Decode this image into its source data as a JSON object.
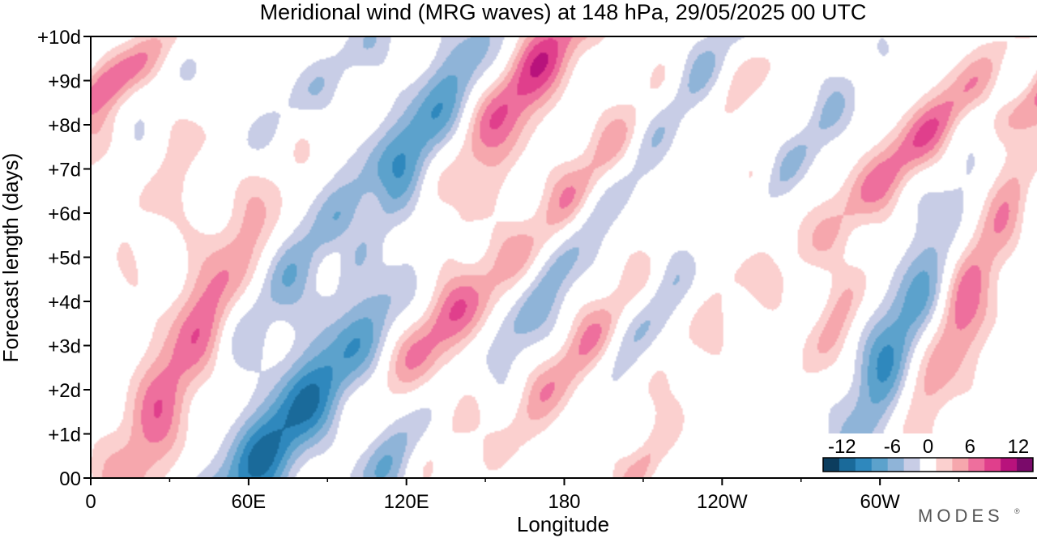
{
  "chart_data": {
    "type": "heatmap",
    "title": "Meridional wind (MRG waves) at  148 hPa,  29/05/2025  00 UTC",
    "xlabel": "Longitude",
    "ylabel": "Forecast length (days)",
    "x_ticks": [
      "0",
      "60E",
      "120E",
      "180",
      "120W",
      "60W"
    ],
    "x_tick_values": [
      0,
      60,
      120,
      180,
      240,
      300
    ],
    "xlim": [
      0,
      360
    ],
    "y_ticks": [
      "00",
      "+1d",
      "+2d",
      "+3d",
      "+4d",
      "+5d",
      "+6d",
      "+7d",
      "+8d",
      "+9d",
      "+10d"
    ],
    "y_tick_values": [
      0,
      1,
      2,
      3,
      4,
      5,
      6,
      7,
      8,
      9,
      10
    ],
    "ylim": [
      0,
      10
    ],
    "colorbar": {
      "tick_labels": [
        "-12",
        "-6",
        "0",
        "6",
        "12"
      ],
      "levels": [
        -14,
        -12,
        -10,
        -8,
        -6,
        -4,
        -2,
        2,
        4,
        6,
        8,
        10,
        12,
        14
      ],
      "colors": [
        "#0c3d5e",
        "#1a6a9a",
        "#2f88bd",
        "#5ca2cc",
        "#8fb4d8",
        "#c8cde6",
        "#ffffff",
        "#fbd0cf",
        "#f6a7ad",
        "#ee6f9d",
        "#e03f8c",
        "#b8127c",
        "#7a0a6a"
      ]
    },
    "features": [
      {
        "sign": 1,
        "lon": 8,
        "day": 9.0,
        "amp": 7.5,
        "slope": 20,
        "sx": 10,
        "sy": 1.0
      },
      {
        "sign": 1,
        "lon": 35,
        "day": 2.5,
        "amp": 8.5,
        "slope": 8,
        "sx": 10,
        "sy": 2.8
      },
      {
        "sign": 1,
        "lon": 30,
        "day": 6.8,
        "amp": 3.0,
        "slope": 8,
        "sx": 12,
        "sy": 1.6
      },
      {
        "sign": -1,
        "lon": 35,
        "day": 9.5,
        "amp": 2.0,
        "slope": 8,
        "sx": 12,
        "sy": 0.8
      },
      {
        "sign": -1,
        "lon": 72,
        "day": 1.0,
        "amp": 11,
        "slope": 12,
        "sx": 11,
        "sy": 1.8
      },
      {
        "sign": -1,
        "lon": 72,
        "day": 4.5,
        "amp": 5.5,
        "slope": 12,
        "sx": 9,
        "sy": 2.0
      },
      {
        "sign": -1,
        "lon": 88,
        "day": 9.0,
        "amp": 4.0,
        "slope": 18,
        "sx": 9,
        "sy": 1.6
      },
      {
        "sign": -1,
        "lon": 108,
        "day": 3.5,
        "amp": 2.5,
        "slope": 10,
        "sx": 8,
        "sy": 1.0
      },
      {
        "sign": 1,
        "lon": 100,
        "day": 5.6,
        "amp": 4.0,
        "slope": 10,
        "sx": 5,
        "sy": 0.9
      },
      {
        "sign": -1,
        "lon": 113,
        "day": 0.4,
        "amp": 6.0,
        "slope": 10,
        "sx": 8,
        "sy": 0.9
      },
      {
        "sign": -1,
        "lon": 123,
        "day": 7.5,
        "amp": 8.0,
        "slope": 10,
        "sx": 9,
        "sy": 2.2
      },
      {
        "sign": 1,
        "lon": 133,
        "day": 3.4,
        "amp": 7.5,
        "slope": 12,
        "sx": 9,
        "sy": 1.1
      },
      {
        "sign": 1,
        "lon": 140,
        "day": 1.3,
        "amp": 6.5,
        "slope": 10,
        "sx": 7,
        "sy": 1.1
      },
      {
        "sign": 1,
        "lon": 150,
        "day": 6.5,
        "amp": 2.5,
        "slope": 10,
        "sx": 6,
        "sy": 1.4
      },
      {
        "sign": 1,
        "lon": 168,
        "day": 9.2,
        "amp": 9.5,
        "slope": 12,
        "sx": 9,
        "sy": 1.6
      },
      {
        "sign": -1,
        "lon": 167,
        "day": 3.8,
        "amp": 6.0,
        "slope": 10,
        "sx": 8,
        "sy": 2.6
      },
      {
        "sign": 1,
        "lon": 194,
        "day": 7.0,
        "amp": 8.5,
        "slope": 13,
        "sx": 9,
        "sy": 1.8
      },
      {
        "sign": 1,
        "lon": 186,
        "day": 2.8,
        "amp": 6.5,
        "slope": 13,
        "sx": 8,
        "sy": 1.6
      },
      {
        "sign": 1,
        "lon": 210,
        "day": 0.3,
        "amp": 5.0,
        "slope": 10,
        "sx": 5,
        "sy": 0.8
      },
      {
        "sign": -1,
        "lon": 214,
        "day": 3.8,
        "amp": 5.5,
        "slope": 10,
        "sx": 8,
        "sy": 1.3
      },
      {
        "sign": -1,
        "lon": 225,
        "day": 8.7,
        "amp": 7.0,
        "slope": 12,
        "sx": 8,
        "sy": 1.8
      },
      {
        "sign": 1,
        "lon": 248,
        "day": 9.0,
        "amp": 3.0,
        "slope": 12,
        "sx": 9,
        "sy": 1.0
      },
      {
        "sign": 1,
        "lon": 236,
        "day": 4.0,
        "amp": 2.5,
        "slope": 12,
        "sx": 10,
        "sy": 2.0
      },
      {
        "sign": 1,
        "lon": 255,
        "day": 6.9,
        "amp": 4.0,
        "slope": 12,
        "sx": 6,
        "sy": 1.2
      },
      {
        "sign": -1,
        "lon": 268,
        "day": 7.4,
        "amp": 6.5,
        "slope": 12,
        "sx": 8,
        "sy": 1.3
      },
      {
        "sign": 1,
        "lon": 287,
        "day": 1.2,
        "amp": 3.5,
        "slope": 10,
        "sx": 10,
        "sy": 1.6
      },
      {
        "sign": 1,
        "lon": 283,
        "day": 3.5,
        "amp": 5.0,
        "slope": 8,
        "sx": 6,
        "sy": 1.0
      },
      {
        "sign": -1,
        "lon": 306,
        "day": 2.7,
        "amp": 12.5,
        "slope": 8,
        "sx": 10,
        "sy": 2.2
      },
      {
        "sign": 1,
        "lon": 321,
        "day": 8.0,
        "amp": 8.5,
        "slope": 16,
        "sx": 9,
        "sy": 2.0
      },
      {
        "sign": 1,
        "lon": 333,
        "day": 4.2,
        "amp": 12.5,
        "slope": 8,
        "sx": 10,
        "sy": 2.2
      },
      {
        "sign": -1,
        "lon": 353,
        "day": 5.5,
        "amp": 5.5,
        "slope": 10,
        "sx": 8,
        "sy": 1.8
      },
      {
        "sign": -1,
        "lon": 345,
        "day": 8.8,
        "amp": 4.5,
        "slope": 10,
        "sx": 9,
        "sy": 1.6
      }
    ]
  },
  "branding": {
    "text": "MODES",
    "mark": "®"
  }
}
